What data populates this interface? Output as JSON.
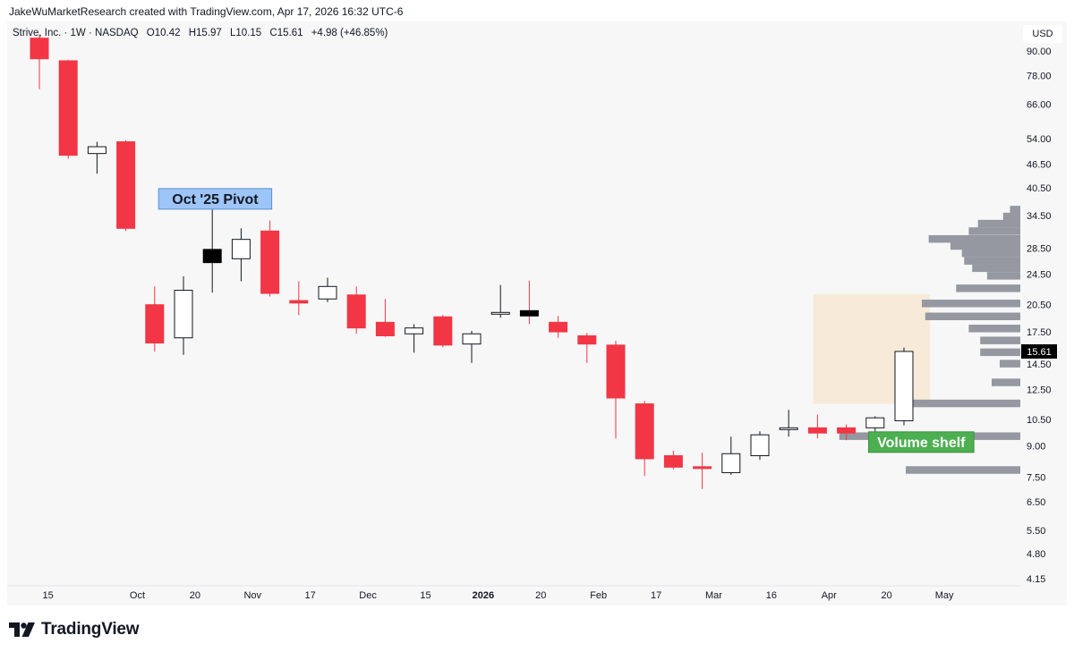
{
  "header": {
    "credit": "JakeWuMarketResearch created with TradingView.com, Apr 17, 2026 16:32 UTC-6",
    "symbol": "Strive, Inc. · 1W · NASDAQ",
    "open": "O10.42",
    "high": "H15.97",
    "low": "L10.15",
    "close": "C15.61",
    "change": "+4.98 (+46.85%)"
  },
  "price_scale": {
    "currency": "USD",
    "last_price_label": "15.61"
  },
  "brand": {
    "name": "TradingView",
    "logo_icon": "tradingview-logo-icon"
  },
  "colors": {
    "up_fill": "#ffffff",
    "down": "#f23645",
    "doji": "#000000",
    "wick": "#131722",
    "volume_profile": "#9598a1",
    "value_area": "#f7ead8",
    "note_blue": "#9ec5f7",
    "note_green": "#4caf50"
  },
  "chart_data": {
    "type": "candlestick",
    "interval": "1W",
    "y_scale": "log",
    "ylim": [
      4.0,
      95.0
    ],
    "grid": false,
    "y_ticks": [
      90.0,
      78.0,
      66.0,
      54.0,
      46.5,
      40.5,
      34.5,
      28.5,
      24.5,
      20.5,
      17.5,
      14.5,
      12.5,
      10.5,
      9.0,
      7.5,
      6.5,
      5.5,
      4.8,
      4.15
    ],
    "y_tick_labels": [
      "90.00",
      "78.00",
      "66.00",
      "54.00",
      "46.50",
      "40.50",
      "34.50",
      "28.50",
      "24.50",
      "20.50",
      "17.50",
      "14.50",
      "12.50",
      "10.50",
      "9.00",
      "7.50",
      "6.50",
      "5.50",
      "4.80",
      "4.15"
    ],
    "x_labels": [
      {
        "index": 0.3,
        "text": "15",
        "bold": false
      },
      {
        "index": 3.4,
        "text": "Oct",
        "bold": false
      },
      {
        "index": 5.4,
        "text": "20",
        "bold": false
      },
      {
        "index": 7.4,
        "text": "Nov",
        "bold": false
      },
      {
        "index": 9.4,
        "text": "17",
        "bold": false
      },
      {
        "index": 11.4,
        "text": "Dec",
        "bold": false
      },
      {
        "index": 13.4,
        "text": "15",
        "bold": false
      },
      {
        "index": 15.4,
        "text": "2026",
        "bold": true
      },
      {
        "index": 17.4,
        "text": "20",
        "bold": false
      },
      {
        "index": 19.4,
        "text": "Feb",
        "bold": false
      },
      {
        "index": 21.4,
        "text": "17",
        "bold": false
      },
      {
        "index": 23.4,
        "text": "Mar",
        "bold": false
      },
      {
        "index": 25.4,
        "text": "16",
        "bold": false
      },
      {
        "index": 27.4,
        "text": "Apr",
        "bold": false
      },
      {
        "index": 29.4,
        "text": "20",
        "bold": false
      },
      {
        "index": 31.4,
        "text": "May",
        "bold": false
      }
    ],
    "candles": [
      {
        "o": 97.0,
        "h": 99.0,
        "l": 72.0,
        "c": 86.0
      },
      {
        "o": 85.0,
        "h": 85.5,
        "l": 48.0,
        "c": 49.0
      },
      {
        "o": 49.5,
        "h": 53.0,
        "l": 44.0,
        "c": 51.5
      },
      {
        "o": 53.0,
        "h": 53.5,
        "l": 31.5,
        "c": 32.0
      },
      {
        "o": 20.5,
        "h": 22.8,
        "l": 15.6,
        "c": 16.4
      },
      {
        "o": 16.9,
        "h": 24.2,
        "l": 15.3,
        "c": 22.3
      },
      {
        "o": 26.2,
        "h": 36.2,
        "l": 22.0,
        "c": 28.3,
        "doji": true
      },
      {
        "o": 26.8,
        "h": 32.0,
        "l": 23.5,
        "c": 30.0
      },
      {
        "o": 31.5,
        "h": 33.5,
        "l": 21.5,
        "c": 21.9
      },
      {
        "o": 21.0,
        "h": 23.5,
        "l": 19.3,
        "c": 20.7
      },
      {
        "o": 21.2,
        "h": 24.0,
        "l": 20.8,
        "c": 22.8
      },
      {
        "o": 21.7,
        "h": 22.8,
        "l": 17.3,
        "c": 17.9
      },
      {
        "o": 18.5,
        "h": 21.2,
        "l": 17.0,
        "c": 17.1
      },
      {
        "o": 17.3,
        "h": 18.3,
        "l": 15.5,
        "c": 17.9
      },
      {
        "o": 19.1,
        "h": 19.3,
        "l": 16.0,
        "c": 16.2
      },
      {
        "o": 16.3,
        "h": 17.6,
        "l": 14.6,
        "c": 17.3
      },
      {
        "o": 19.5,
        "h": 23.0,
        "l": 19.0,
        "c": 19.6
      },
      {
        "o": 19.8,
        "h": 23.6,
        "l": 18.3,
        "c": 19.2,
        "doji": true
      },
      {
        "o": 18.5,
        "h": 19.2,
        "l": 16.9,
        "c": 17.5
      },
      {
        "o": 17.1,
        "h": 17.4,
        "l": 14.6,
        "c": 16.3
      },
      {
        "o": 16.2,
        "h": 16.6,
        "l": 9.4,
        "c": 11.9
      },
      {
        "o": 11.5,
        "h": 11.7,
        "l": 7.55,
        "c": 8.35
      },
      {
        "o": 8.5,
        "h": 8.75,
        "l": 7.85,
        "c": 7.95
      },
      {
        "o": 7.97,
        "h": 8.65,
        "l": 7.0,
        "c": 7.95
      },
      {
        "o": 7.7,
        "h": 9.5,
        "l": 7.6,
        "c": 8.6
      },
      {
        "o": 8.5,
        "h": 9.8,
        "l": 8.3,
        "c": 9.6
      },
      {
        "o": 9.9,
        "h": 11.1,
        "l": 9.5,
        "c": 10.0
      },
      {
        "o": 10.0,
        "h": 10.8,
        "l": 9.4,
        "c": 9.7
      },
      {
        "o": 10.0,
        "h": 10.2,
        "l": 9.3,
        "c": 9.7
      },
      {
        "o": 10.0,
        "h": 10.7,
        "l": 9.1,
        "c": 10.6
      },
      {
        "o": 10.42,
        "h": 15.97,
        "l": 10.15,
        "c": 15.61
      }
    ],
    "volume_profile": [
      {
        "price": 35.6,
        "size": 0.09
      },
      {
        "price": 34.2,
        "size": 0.15
      },
      {
        "price": 32.8,
        "size": 0.37
      },
      {
        "price": 31.4,
        "size": 0.45
      },
      {
        "price": 30.0,
        "size": 0.8
      },
      {
        "price": 28.8,
        "size": 0.61
      },
      {
        "price": 27.6,
        "size": 0.51
      },
      {
        "price": 26.4,
        "size": 0.49
      },
      {
        "price": 25.3,
        "size": 0.42
      },
      {
        "price": 24.2,
        "size": 0.29
      },
      {
        "price": 22.5,
        "size": 0.56
      },
      {
        "price": 20.6,
        "size": 0.86
      },
      {
        "price": 19.1,
        "size": 0.83
      },
      {
        "price": 17.8,
        "size": 0.45
      },
      {
        "price": 16.6,
        "size": 0.35
      },
      {
        "price": 15.5,
        "size": 0.35
      },
      {
        "price": 14.5,
        "size": 0.18
      },
      {
        "price": 13.0,
        "size": 0.25
      },
      {
        "price": 11.5,
        "size": 1.0
      },
      {
        "price": 9.5,
        "size": 1.58
      },
      {
        "price": 7.8,
        "size": 1.0
      }
    ],
    "value_area": {
      "from_index": 27.35,
      "to_index": 30.9,
      "low": 11.5,
      "high": 21.8
    },
    "annotations": [
      {
        "text": "Oct '25 Pivot",
        "style": "blue",
        "index": 6.1,
        "price": 38.0
      },
      {
        "text": "Volume shelf",
        "style": "green",
        "index": 30.6,
        "price": 9.2
      }
    ]
  }
}
